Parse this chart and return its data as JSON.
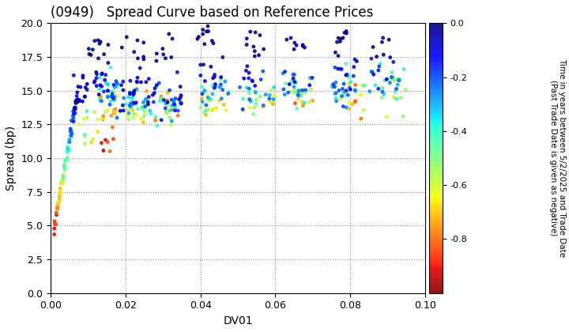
{
  "title": "(0949)   Spread Curve based on Reference Prices",
  "xlabel": "DV01",
  "ylabel": "Spread (bp)",
  "xlim": [
    0.0,
    0.1
  ],
  "ylim": [
    0.0,
    20.0
  ],
  "yticks": [
    0.0,
    2.5,
    5.0,
    7.5,
    10.0,
    12.5,
    15.0,
    17.5,
    20.0
  ],
  "xticks": [
    0.0,
    0.02,
    0.04,
    0.06,
    0.08,
    0.1
  ],
  "colorbar_label": "Time in years between 5/2/2025 and Trade Date\n(Past Trade Date is given as negative)",
  "cmap": "jet_r",
  "vmin": -1.0,
  "vmax": 0.0,
  "colorbar_ticks": [
    0.0,
    -0.2,
    -0.4,
    -0.6,
    -0.8
  ],
  "background_color": "#ffffff",
  "grid_color": "#888888",
  "title_fontsize": 12,
  "axis_label_fontsize": 10,
  "point_size": 12
}
